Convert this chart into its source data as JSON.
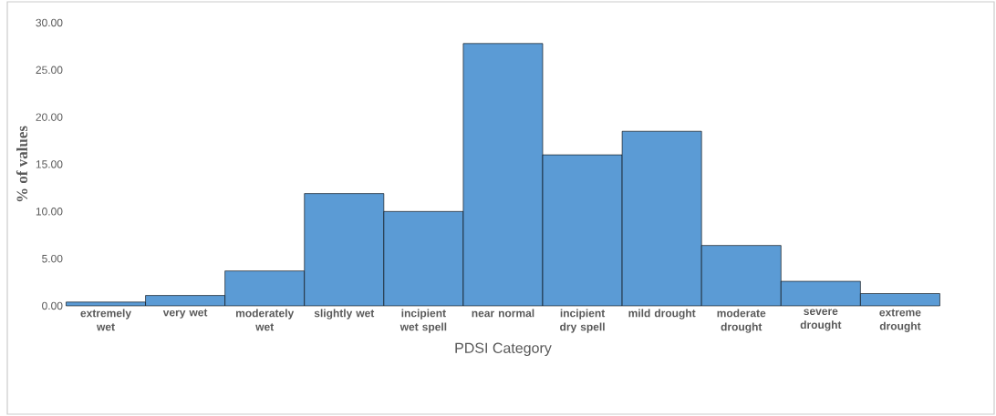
{
  "chart_data": {
    "type": "bar",
    "xlabel": "PDSI Category",
    "ylabel": "% of values",
    "categories": [
      "extremely wet",
      "very wet",
      "moderately wet",
      "slightly wet",
      "incipient wet spell",
      "near normal",
      "incipient dry spell",
      "mild drought",
      "moderate drought",
      "severe drought",
      "extreme drought"
    ],
    "values": [
      0.4,
      1.1,
      3.7,
      11.9,
      10.0,
      27.8,
      16.0,
      18.5,
      6.4,
      2.6,
      1.3
    ],
    "color": "#5b9bd5",
    "ylim": [
      0,
      30
    ],
    "yticks": [
      {
        "value": 0,
        "label": "0.00"
      },
      {
        "value": 5,
        "label": "5.00"
      },
      {
        "value": 10,
        "label": "10.00"
      },
      {
        "value": 15,
        "label": "15.00"
      },
      {
        "value": 20,
        "label": "20.00"
      },
      {
        "value": 25,
        "label": "25.00"
      },
      {
        "value": 30,
        "label": "30.00"
      }
    ]
  }
}
